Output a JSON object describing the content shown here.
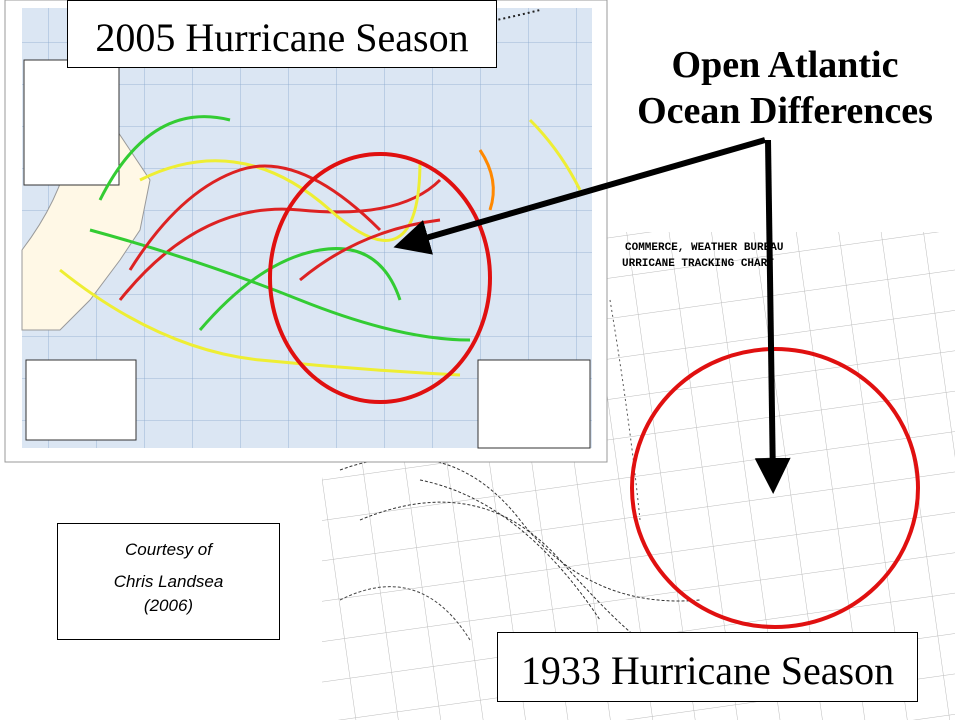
{
  "title_2005": "2005 Hurricane Season",
  "callout": {
    "line1": "Open Atlantic",
    "line2": "Ocean Differences"
  },
  "credit": {
    "line1": "Courtesy of",
    "line2": "Chris Landsea",
    "line3": "(2006)"
  },
  "title_1933": "1933 Hurricane Season",
  "map_1933_header": {
    "line1": "COMMERCE, WEATHER BUREAU",
    "line2": "URRICANE TRACKING CHART"
  }
}
